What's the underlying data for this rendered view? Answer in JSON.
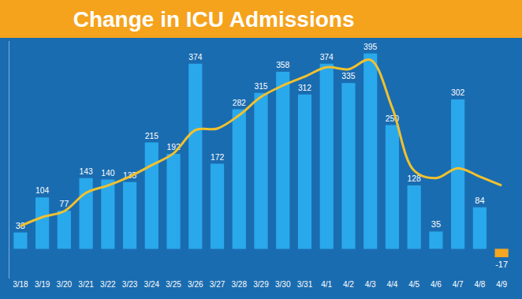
{
  "chart_data": {
    "type": "bar",
    "title": "Change in ICU Admissions",
    "categories": [
      "3/18",
      "3/19",
      "3/20",
      "3/21",
      "3/22",
      "3/23",
      "3/24",
      "3/25",
      "3/26",
      "3/27",
      "3/28",
      "3/29",
      "3/30",
      "3/31",
      "4/1",
      "4/2",
      "4/3",
      "4/4",
      "4/5",
      "4/6",
      "4/7",
      "4/8",
      "4/9"
    ],
    "series": [
      {
        "type": "bar",
        "colors": [
          "#2aa8ec",
          "#2aa8ec",
          "#2aa8ec",
          "#2aa8ec",
          "#2aa8ec",
          "#2aa8ec",
          "#2aa8ec",
          "#2aa8ec",
          "#2aa8ec",
          "#2aa8ec",
          "#2aa8ec",
          "#2aa8ec",
          "#2aa8ec",
          "#2aa8ec",
          "#2aa8ec",
          "#2aa8ec",
          "#2aa8ec",
          "#2aa8ec",
          "#2aa8ec",
          "#2aa8ec",
          "#2aa8ec",
          "#2aa8ec",
          "#f5a623"
        ],
        "values": [
          33,
          104,
          77,
          143,
          140,
          135,
          215,
          192,
          374,
          172,
          282,
          315,
          358,
          312,
          374,
          335,
          395,
          250,
          128,
          35,
          302,
          84,
          -17
        ]
      },
      {
        "type": "line",
        "color": "#f2c12e",
        "line_style": "solid",
        "values": [
          46,
          64,
          76,
          113,
          128,
          146,
          169,
          193,
          240,
          243,
          270,
          307,
          330,
          348,
          367,
          363,
          382,
          285,
          158,
          143,
          163,
          146,
          128
        ]
      }
    ],
    "data_labels": true,
    "ylim": [
      -60,
      420
    ],
    "tick_labels": "x",
    "grid": false
  }
}
